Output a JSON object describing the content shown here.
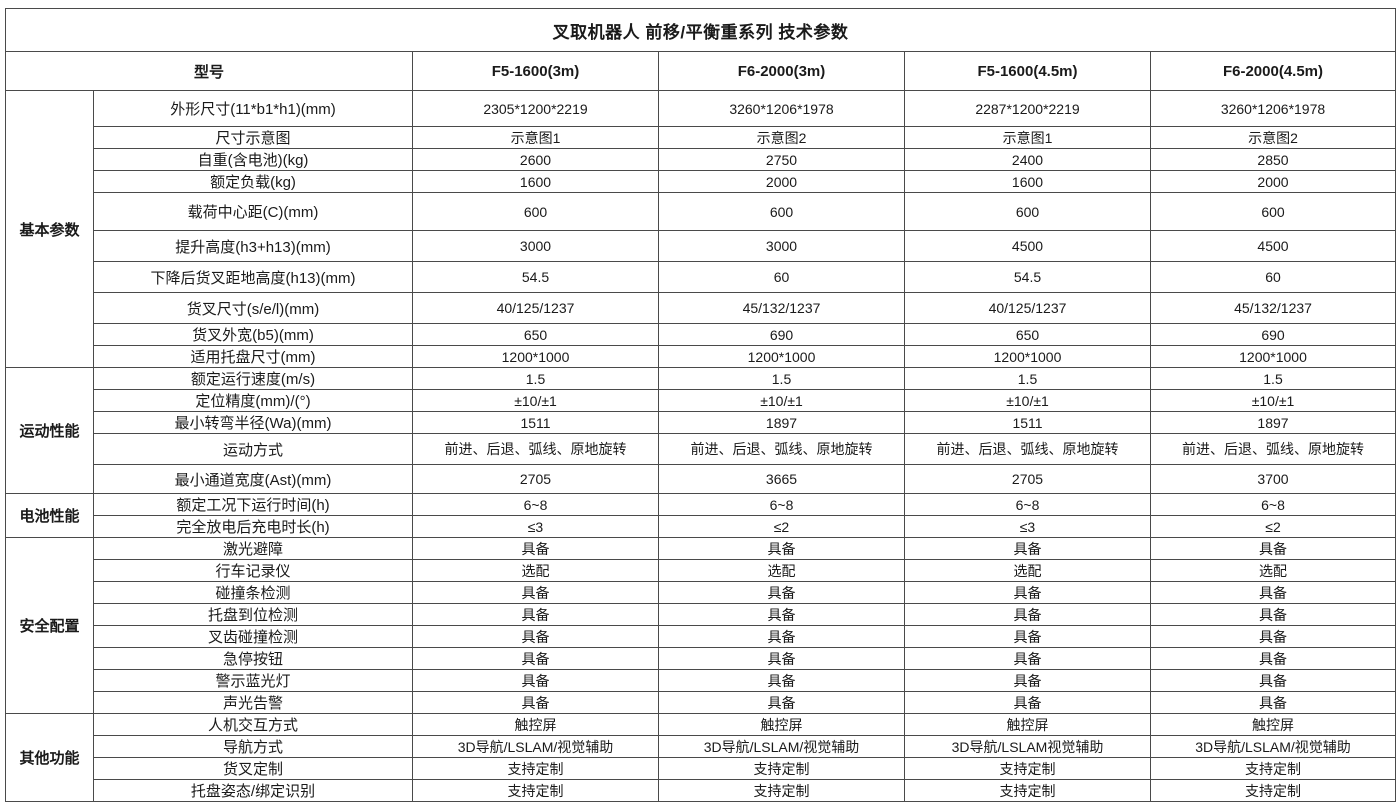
{
  "title": "叉取机器人 前移/平衡重系列 技术参数",
  "header": {
    "model_label": "型号",
    "models": [
      "F5-1600(3m)",
      "F6-2000(3m)",
      "F5-1600(4.5m)",
      "F6-2000(4.5m)"
    ]
  },
  "sections": [
    {
      "name": "基本参数",
      "rows": [
        {
          "label": "外形尺寸(11*b1*h1)(mm)",
          "values": [
            "2305*1200*2219",
            "3260*1206*1978",
            "2287*1200*2219",
            "3260*1206*1978"
          ]
        },
        {
          "label": "尺寸示意图",
          "values": [
            "示意图1",
            "示意图2",
            "示意图1",
            "示意图2"
          ]
        },
        {
          "label": "自重(含电池)(kg)",
          "values": [
            "2600",
            "2750",
            "2400",
            "2850"
          ]
        },
        {
          "label": "额定负载(kg)",
          "values": [
            "1600",
            "2000",
            "1600",
            "2000"
          ]
        },
        {
          "label": "载荷中心距(C)(mm)",
          "values": [
            "600",
            "600",
            "600",
            "600"
          ]
        },
        {
          "label": "提升高度(h3+h13)(mm)",
          "values": [
            "3000",
            "3000",
            "4500",
            "4500"
          ]
        },
        {
          "label": "下降后货叉距地高度(h13)(mm)",
          "values": [
            "54.5",
            "60",
            "54.5",
            "60"
          ]
        },
        {
          "label": "货叉尺寸(s/e/l)(mm)",
          "values": [
            "40/125/1237",
            "45/132/1237",
            "40/125/1237",
            "45/132/1237"
          ]
        },
        {
          "label": "货叉外宽(b5)(mm)",
          "values": [
            "650",
            "690",
            "650",
            "690"
          ]
        },
        {
          "label": "适用托盘尺寸(mm)",
          "values": [
            "1200*1000",
            "1200*1000",
            "1200*1000",
            "1200*1000"
          ]
        }
      ]
    },
    {
      "name": "运动性能",
      "rows": [
        {
          "label": "额定运行速度(m/s)",
          "values": [
            "1.5",
            "1.5",
            "1.5",
            "1.5"
          ]
        },
        {
          "label": "定位精度(mm)/(°)",
          "values": [
            "±10/±1",
            "±10/±1",
            "±10/±1",
            "±10/±1"
          ]
        },
        {
          "label": "最小转弯半径(Wa)(mm)",
          "values": [
            "1511",
            "1897",
            "1511",
            "1897"
          ]
        },
        {
          "label": "运动方式",
          "values": [
            "前进、后退、弧线、原地旋转",
            "前进、后退、弧线、原地旋转",
            "前进、后退、弧线、原地旋转",
            "前进、后退、弧线、原地旋转"
          ]
        },
        {
          "label": "最小通道宽度(Ast)(mm)",
          "values": [
            "2705",
            "3665",
            "2705",
            "3700"
          ]
        }
      ]
    },
    {
      "name": "电池性能",
      "rows": [
        {
          "label": "额定工况下运行时间(h)",
          "values": [
            "6~8",
            "6~8",
            "6~8",
            "6~8"
          ]
        },
        {
          "label": "完全放电后充电时长(h)",
          "values": [
            "≤3",
            "≤2",
            "≤3",
            "≤2"
          ]
        }
      ]
    },
    {
      "name": "安全配置",
      "rows": [
        {
          "label": "激光避障",
          "values": [
            "具备",
            "具备",
            "具备",
            "具备"
          ]
        },
        {
          "label": "行车记录仪",
          "values": [
            "选配",
            "选配",
            "选配",
            "选配"
          ]
        },
        {
          "label": "碰撞条检测",
          "values": [
            "具备",
            "具备",
            "具备",
            "具备"
          ]
        },
        {
          "label": "托盘到位检测",
          "values": [
            "具备",
            "具备",
            "具备",
            "具备"
          ]
        },
        {
          "label": "叉齿碰撞检测",
          "values": [
            "具备",
            "具备",
            "具备",
            "具备"
          ]
        },
        {
          "label": "急停按钮",
          "values": [
            "具备",
            "具备",
            "具备",
            "具备"
          ]
        },
        {
          "label": "警示蓝光灯",
          "values": [
            "具备",
            "具备",
            "具备",
            "具备"
          ]
        },
        {
          "label": "声光告警",
          "values": [
            "具备",
            "具备",
            "具备",
            "具备"
          ]
        }
      ]
    },
    {
      "name": "其他功能",
      "rows": [
        {
          "label": "人机交互方式",
          "values": [
            "触控屏",
            "触控屏",
            "触控屏",
            "触控屏"
          ]
        },
        {
          "label": "导航方式",
          "values": [
            "3D导航/LSLAM/视觉辅助",
            "3D导航/LSLAM/视觉辅助",
            "3D导航/LSLAM视觉辅助",
            "3D导航/LSLAM/视觉辅助"
          ]
        },
        {
          "label": "货叉定制",
          "values": [
            "支持定制",
            "支持定制",
            "支持定制",
            "支持定制"
          ]
        },
        {
          "label": "托盘姿态/绑定识别",
          "values": [
            "支持定制",
            "支持定制",
            "支持定制",
            "支持定制"
          ]
        }
      ]
    }
  ]
}
